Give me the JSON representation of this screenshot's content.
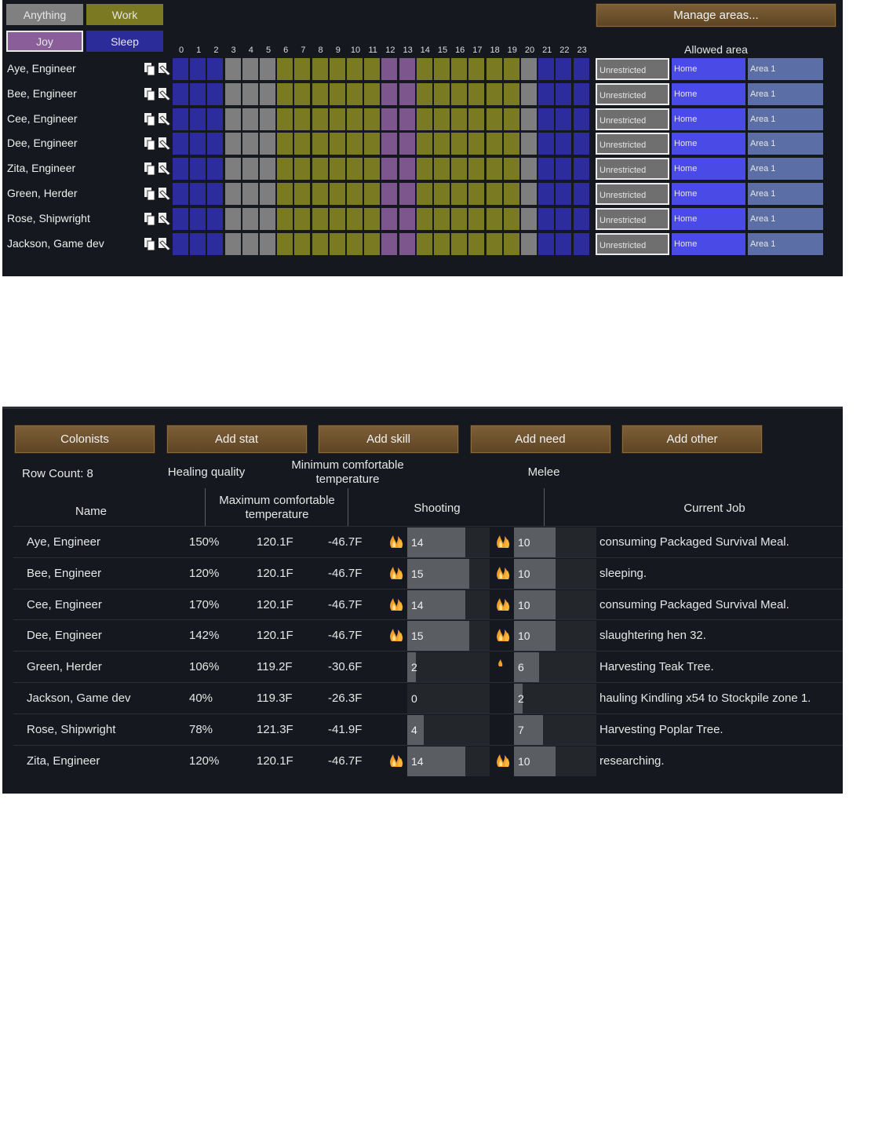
{
  "schedule": {
    "assign_buttons": [
      {
        "label": "Anything",
        "color": "#808080"
      },
      {
        "label": "Work",
        "color": "#7b7a23"
      },
      {
        "label": "Joy",
        "color": "#8a5f99"
      },
      {
        "label": "Sleep",
        "color": "#2b2b9a"
      }
    ],
    "manage_areas_label": "Manage areas...",
    "allowed_area_label": "Allowed area",
    "hours": [
      "0",
      "1",
      "2",
      "3",
      "4",
      "5",
      "6",
      "7",
      "8",
      "9",
      "10",
      "11",
      "12",
      "13",
      "14",
      "15",
      "16",
      "17",
      "18",
      "19",
      "20",
      "21",
      "22",
      "23"
    ],
    "hour_types": [
      "sleep",
      "sleep",
      "sleep",
      "anything",
      "anything",
      "anything",
      "work",
      "work",
      "work",
      "work",
      "work",
      "work",
      "joy",
      "joy",
      "work",
      "work",
      "work",
      "work",
      "work",
      "work",
      "anything",
      "sleep",
      "sleep",
      "sleep"
    ],
    "type_colors": {
      "sleep": "#2c2c9c",
      "anything": "#7e7e7e",
      "work": "#7a7a23",
      "joy": "#7d568d"
    },
    "area_options": [
      {
        "label": "Unrestricted",
        "color": "#6f6f6f",
        "selected": true
      },
      {
        "label": "Home",
        "color": "#4a4ae6",
        "selected": false
      },
      {
        "label": "Area 1",
        "color": "#5b6fa6",
        "selected": false
      }
    ],
    "pawns": [
      "Aye, Engineer",
      "Bee, Engineer",
      "Cee, Engineer",
      "Dee, Engineer",
      "Zita, Engineer",
      "Green, Herder",
      "Rose, Shipwright",
      "Jackson, Game dev"
    ]
  },
  "colonists": {
    "buttons": [
      "Colonists",
      "Add stat",
      "Add skill",
      "Add need",
      "Add other"
    ],
    "row_count_label": "Row Count: 8",
    "headers": {
      "name": "Name",
      "healing": "Healing quality",
      "max_temp": "Maximum comfortable temperature",
      "min_temp": "Minimum comfortable temperature",
      "shooting": "Shooting",
      "melee": "Melee",
      "current_job": "Current Job"
    },
    "rows": [
      {
        "name": "Aye, Engineer",
        "healing": "150%",
        "max_temp": "120.1F",
        "min_temp": "-46.7F",
        "shooting": 14,
        "shoot_passion": "major",
        "melee": 10,
        "melee_passion": "major",
        "job": "consuming Packaged Survival Meal."
      },
      {
        "name": "Bee, Engineer",
        "healing": "120%",
        "max_temp": "120.1F",
        "min_temp": "-46.7F",
        "shooting": 15,
        "shoot_passion": "major",
        "melee": 10,
        "melee_passion": "major",
        "job": "sleeping."
      },
      {
        "name": "Cee, Engineer",
        "healing": "170%",
        "max_temp": "120.1F",
        "min_temp": "-46.7F",
        "shooting": 14,
        "shoot_passion": "major",
        "melee": 10,
        "melee_passion": "major",
        "job": "consuming Packaged Survival Meal."
      },
      {
        "name": "Dee, Engineer",
        "healing": "142%",
        "max_temp": "120.1F",
        "min_temp": "-46.7F",
        "shooting": 15,
        "shoot_passion": "major",
        "melee": 10,
        "melee_passion": "major",
        "job": "slaughtering hen 32."
      },
      {
        "name": "Green, Herder",
        "healing": "106%",
        "max_temp": "119.2F",
        "min_temp": "-30.6F",
        "shooting": 2,
        "shoot_passion": "none",
        "melee": 6,
        "melee_passion": "minor",
        "job": "Harvesting Teak Tree."
      },
      {
        "name": "Jackson, Game dev",
        "healing": "40%",
        "max_temp": "119.3F",
        "min_temp": "-26.3F",
        "shooting": 0,
        "shoot_passion": "none",
        "melee": 2,
        "melee_passion": "none",
        "job": "hauling Kindling x54 to Stockpile zone 1."
      },
      {
        "name": "Rose, Shipwright",
        "healing": "78%",
        "max_temp": "121.3F",
        "min_temp": "-41.9F",
        "shooting": 4,
        "shoot_passion": "none",
        "melee": 7,
        "melee_passion": "none",
        "job": "Harvesting Poplar Tree."
      },
      {
        "name": "Zita, Engineer",
        "healing": "120%",
        "max_temp": "120.1F",
        "min_temp": "-46.7F",
        "shooting": 14,
        "shoot_passion": "major",
        "melee": 10,
        "melee_passion": "major",
        "job": "researching."
      }
    ]
  }
}
